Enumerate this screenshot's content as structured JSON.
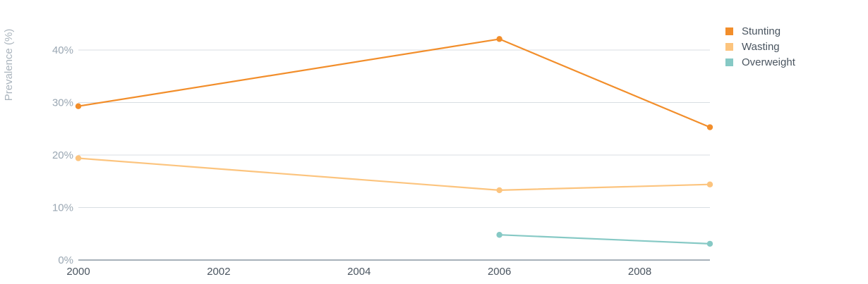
{
  "chart_data": {
    "type": "line",
    "title": "",
    "xlabel": "",
    "ylabel": "Prevalence (%)",
    "x_ticks": [
      "2000",
      "2002",
      "2004",
      "2006",
      "2008"
    ],
    "y_ticks": [
      "0%",
      "10%",
      "20%",
      "30%",
      "40%"
    ],
    "xlim": [
      2000,
      2009
    ],
    "ylim": [
      0,
      45
    ],
    "grid": true,
    "legend_position": "top-right",
    "series": [
      {
        "name": "Stunting",
        "color": "#f28e2b",
        "points": [
          {
            "x": 2000,
            "y": 29.3
          },
          {
            "x": 2006,
            "y": 42.1
          },
          {
            "x": 2009,
            "y": 25.3
          }
        ]
      },
      {
        "name": "Wasting",
        "color": "#fcc47e",
        "points": [
          {
            "x": 2000,
            "y": 19.4
          },
          {
            "x": 2006,
            "y": 13.3
          },
          {
            "x": 2009,
            "y": 14.4
          }
        ]
      },
      {
        "name": "Overweight",
        "color": "#86c9c5",
        "points": [
          {
            "x": 2006,
            "y": 4.8
          },
          {
            "x": 2009,
            "y": 3.1
          }
        ]
      }
    ]
  }
}
